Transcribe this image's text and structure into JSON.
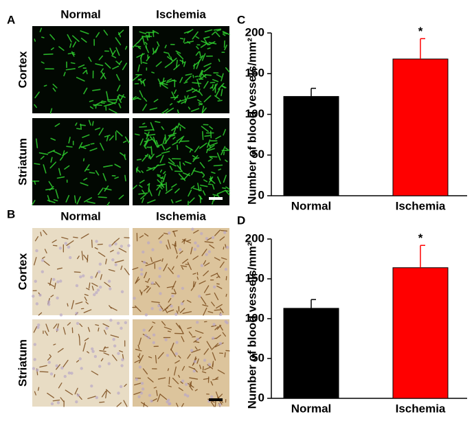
{
  "panels": {
    "labels": [
      "A",
      "B",
      "C",
      "D"
    ],
    "columns": [
      "Normal",
      "Ischemia"
    ],
    "rows": [
      "Cortex",
      "Striatum"
    ]
  },
  "chart_data": [
    {
      "type": "bar",
      "categories": [
        "Normal",
        "Ischemia"
      ],
      "values": [
        122,
        168
      ],
      "errors": [
        10,
        25
      ],
      "colors": [
        "#000000",
        "#ff0000"
      ],
      "ylabel": "Number of blood vessels/mm²",
      "ylim": [
        0,
        200
      ],
      "yticks": [
        0,
        50,
        100,
        150,
        200
      ],
      "annotation": {
        "text": "*",
        "category": "Ischemia"
      }
    },
    {
      "type": "bar",
      "categories": [
        "Normal",
        "Ischemia"
      ],
      "values": [
        113,
        164
      ],
      "errors": [
        11,
        28
      ],
      "colors": [
        "#000000",
        "#ff0000"
      ],
      "ylabel": "Number of blood vessels/mm²",
      "ylim": [
        0,
        200
      ],
      "yticks": [
        0,
        50,
        100,
        150,
        200
      ],
      "annotation": {
        "text": "*",
        "category": "Ischemia"
      }
    }
  ]
}
